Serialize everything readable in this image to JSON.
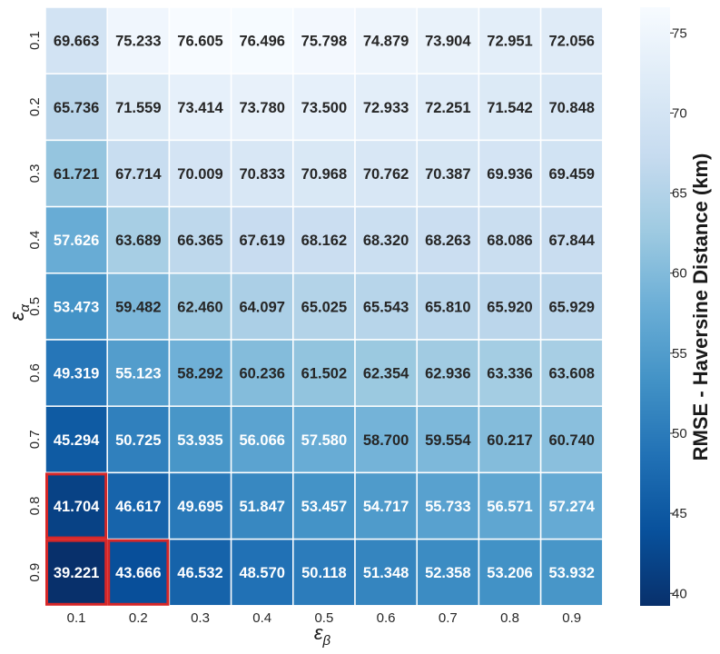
{
  "chart_data": {
    "type": "heatmap",
    "xlabel": "ε",
    "xlabel_sub": "β",
    "ylabel": "ε",
    "ylabel_sub": "α",
    "x_categories": [
      "0.1",
      "0.2",
      "0.3",
      "0.4",
      "0.5",
      "0.6",
      "0.7",
      "0.8",
      "0.9"
    ],
    "y_categories": [
      "0.1",
      "0.2",
      "0.3",
      "0.4",
      "0.5",
      "0.6",
      "0.7",
      "0.8",
      "0.9"
    ],
    "values": [
      [
        69.663,
        75.233,
        76.605,
        76.496,
        75.798,
        74.879,
        73.904,
        72.951,
        72.056
      ],
      [
        65.736,
        71.559,
        73.414,
        73.78,
        73.5,
        72.933,
        72.251,
        71.542,
        70.848
      ],
      [
        61.721,
        67.714,
        70.009,
        70.833,
        70.968,
        70.762,
        70.387,
        69.936,
        69.459
      ],
      [
        57.626,
        63.689,
        66.365,
        67.619,
        68.162,
        68.32,
        68.263,
        68.086,
        67.844
      ],
      [
        53.473,
        59.482,
        62.46,
        64.097,
        65.025,
        65.543,
        65.81,
        65.92,
        65.929
      ],
      [
        49.319,
        55.123,
        58.292,
        60.236,
        61.502,
        62.354,
        62.936,
        63.336,
        63.608
      ],
      [
        45.294,
        50.725,
        53.935,
        56.066,
        57.58,
        58.7,
        59.554,
        60.217,
        60.74
      ],
      [
        41.704,
        46.617,
        49.695,
        51.847,
        53.457,
        54.717,
        55.733,
        56.571,
        57.274
      ],
      [
        39.221,
        43.666,
        46.532,
        48.57,
        50.118,
        51.348,
        52.358,
        53.206,
        53.932
      ]
    ],
    "colorbar": {
      "label": "RMSE - Haversine Distance (km)",
      "min": 39.221,
      "max": 76.605,
      "ticks": [
        40,
        45,
        50,
        55,
        60,
        65,
        70,
        75
      ],
      "colormap": "Blues_r"
    },
    "highlighted_cells": [
      {
        "row": "0.8",
        "col": "0.1"
      },
      {
        "row": "0.9",
        "col": "0.1"
      },
      {
        "row": "0.9",
        "col": "0.2"
      }
    ],
    "highlight_color": "#d62728"
  }
}
